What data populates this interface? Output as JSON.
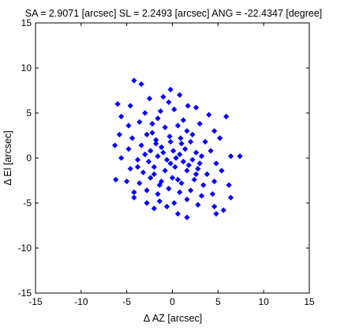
{
  "chart_data": {
    "type": "scatter",
    "title": "SA = 2.9071 [arcsec]  SL = 2.2493 [arcsec]  ANG = -22.4347 [degree]",
    "xlabel": "Δ AZ [arcsec]",
    "ylabel": "Δ El [arcsec]",
    "xlim": [
      -15,
      15
    ],
    "ylim": [
      -15,
      15
    ],
    "xticks": [
      -15,
      -10,
      -5,
      0,
      5,
      10,
      15
    ],
    "yticks": [
      -15,
      -10,
      -5,
      0,
      5,
      10,
      15
    ],
    "grid": false,
    "marker": "diamond",
    "color": "#0000ff",
    "points": [
      [
        -4.2,
        8.6
      ],
      [
        -3.4,
        8.2
      ],
      [
        -0.2,
        7.6
      ],
      [
        -1.0,
        6.8
      ],
      [
        0.8,
        7.0
      ],
      [
        -2.5,
        6.6
      ],
      [
        -0.4,
        6.2
      ],
      [
        1.7,
        5.8
      ],
      [
        -6.0,
        6.0
      ],
      [
        -4.6,
        5.8
      ],
      [
        -5.6,
        4.6
      ],
      [
        -3.0,
        5.0
      ],
      [
        -1.3,
        5.2
      ],
      [
        0.2,
        5.4
      ],
      [
        2.6,
        5.6
      ],
      [
        4.0,
        4.8
      ],
      [
        5.9,
        4.6
      ],
      [
        -4.8,
        3.6
      ],
      [
        -3.6,
        4.0
      ],
      [
        -2.2,
        3.8
      ],
      [
        -0.8,
        3.4
      ],
      [
        0.6,
        3.6
      ],
      [
        1.6,
        3.0
      ],
      [
        3.0,
        3.8
      ],
      [
        4.6,
        3.0
      ],
      [
        -5.8,
        2.6
      ],
      [
        -4.4,
        2.2
      ],
      [
        -2.8,
        2.6
      ],
      [
        -1.8,
        2.0
      ],
      [
        -0.3,
        2.4
      ],
      [
        0.9,
        2.2
      ],
      [
        2.2,
        2.6
      ],
      [
        3.6,
        1.8
      ],
      [
        5.2,
        2.2
      ],
      [
        -6.3,
        1.4
      ],
      [
        -4.8,
        1.0
      ],
      [
        -3.4,
        1.4
      ],
      [
        -2.4,
        0.8
      ],
      [
        -1.2,
        1.2
      ],
      [
        0.1,
        0.8
      ],
      [
        1.4,
        1.0
      ],
      [
        2.6,
        0.6
      ],
      [
        4.2,
        0.8
      ],
      [
        6.4,
        0.2
      ],
      [
        7.4,
        0.2
      ],
      [
        -5.6,
        0.0
      ],
      [
        -3.8,
        -0.2
      ],
      [
        -2.6,
        -0.4
      ],
      [
        -1.6,
        0.2
      ],
      [
        -0.6,
        -0.2
      ],
      [
        0.4,
        0.0
      ],
      [
        1.2,
        -0.4
      ],
      [
        2.2,
        -0.2
      ],
      [
        3.2,
        0.2
      ],
      [
        4.8,
        -0.6
      ],
      [
        -6.2,
        -2.4
      ],
      [
        -4.6,
        -1.2
      ],
      [
        -3.2,
        -1.6
      ],
      [
        -2.0,
        -1.0
      ],
      [
        -0.8,
        -1.4
      ],
      [
        0.3,
        -1.0
      ],
      [
        1.6,
        -1.4
      ],
      [
        2.8,
        -1.2
      ],
      [
        3.8,
        -1.8
      ],
      [
        5.4,
        -1.4
      ],
      [
        -5.0,
        -2.6
      ],
      [
        -3.6,
        -2.8
      ],
      [
        -2.4,
        -2.2
      ],
      [
        -1.2,
        -2.6
      ],
      [
        0.0,
        -2.2
      ],
      [
        1.0,
        -2.8
      ],
      [
        2.4,
        -2.4
      ],
      [
        3.4,
        -3.0
      ],
      [
        4.6,
        -2.6
      ],
      [
        6.2,
        -3.0
      ],
      [
        -4.2,
        -3.8
      ],
      [
        -2.8,
        -3.6
      ],
      [
        -1.6,
        -4.0
      ],
      [
        -0.4,
        -3.4
      ],
      [
        0.8,
        -3.8
      ],
      [
        2.0,
        -3.6
      ],
      [
        3.2,
        -4.2
      ],
      [
        4.4,
        -4.0
      ],
      [
        6.4,
        -4.4
      ],
      [
        -2.8,
        -5.0
      ],
      [
        -1.4,
        -4.8
      ],
      [
        0.2,
        -5.0
      ],
      [
        1.6,
        -4.6
      ],
      [
        2.8,
        -5.2
      ],
      [
        4.6,
        -5.4
      ],
      [
        5.6,
        -5.8
      ],
      [
        -4.2,
        -4.4
      ],
      [
        -2.0,
        -5.6
      ],
      [
        -0.6,
        -5.4
      ],
      [
        0.6,
        -6.2
      ],
      [
        1.6,
        -6.6
      ],
      [
        4.8,
        -6.2
      ],
      [
        -1.8,
        1.6
      ],
      [
        -0.2,
        1.8
      ],
      [
        1.0,
        1.6
      ],
      [
        -3.0,
        0.4
      ],
      [
        -1.0,
        0.6
      ],
      [
        0.8,
        0.4
      ],
      [
        2.0,
        1.8
      ],
      [
        -2.0,
        -1.8
      ],
      [
        -0.2,
        -0.6
      ],
      [
        1.8,
        -0.8
      ],
      [
        -1.4,
        -3.0
      ],
      [
        0.6,
        -2.4
      ],
      [
        2.6,
        -1.8
      ],
      [
        -3.8,
        -1.0
      ],
      [
        -2.2,
        2.8
      ],
      [
        1.2,
        4.2
      ],
      [
        -1.6,
        4.4
      ],
      [
        3.0,
        -0.6
      ]
    ]
  }
}
